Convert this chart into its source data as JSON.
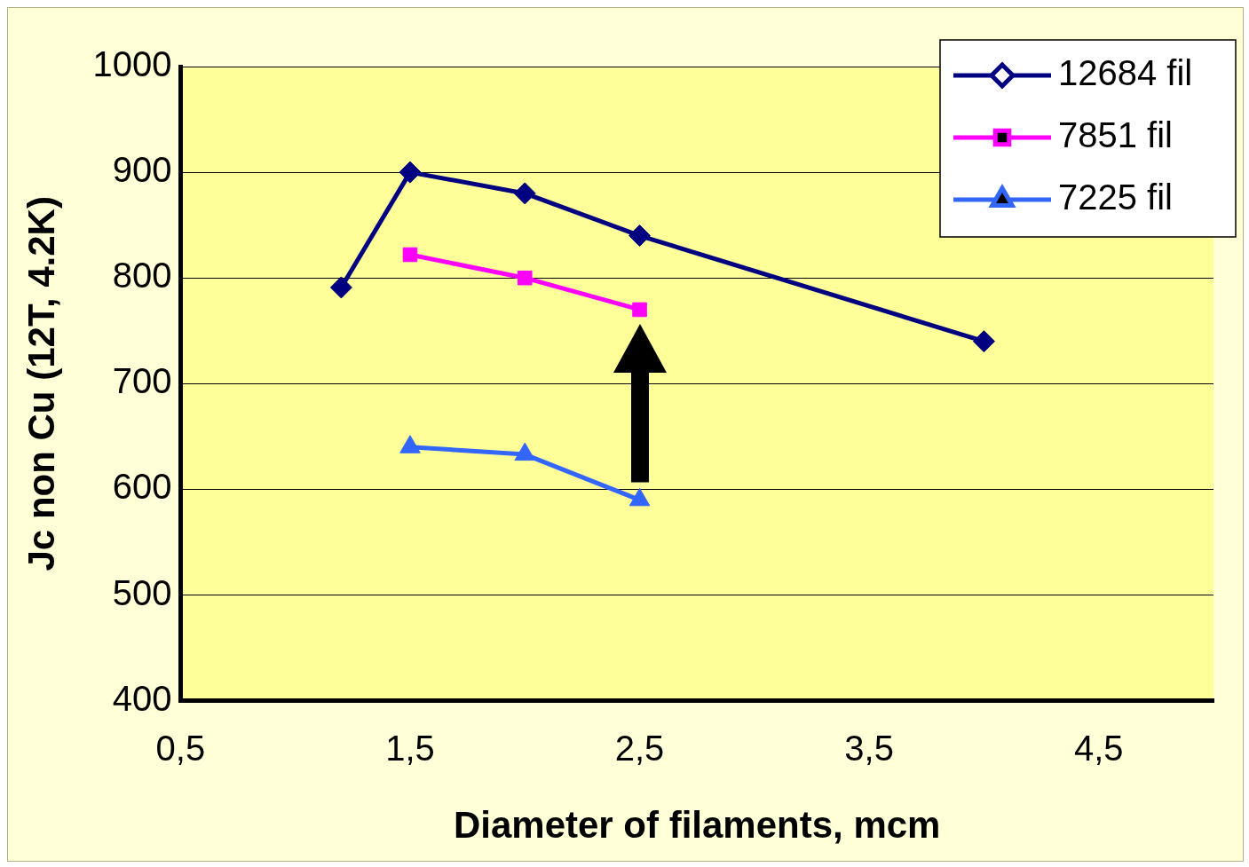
{
  "chart_data": {
    "type": "line",
    "xlabel": "Diameter of filaments, mcm",
    "ylabel": "Jc non Cu (12T, 4.2K)",
    "xlim": [
      0.5,
      5
    ],
    "xticks": [
      {
        "value": 0.5,
        "label": "0,5"
      },
      {
        "value": 1.5,
        "label": "1,5"
      },
      {
        "value": 2.5,
        "label": "2,5"
      },
      {
        "value": 3.5,
        "label": "3,5"
      },
      {
        "value": 4.5,
        "label": "4,5"
      }
    ],
    "ylim": [
      400,
      1000
    ],
    "yticks": [
      400,
      500,
      600,
      700,
      800,
      900,
      1000
    ],
    "grid": "y",
    "legend": "top right",
    "line_style": "solid",
    "series": [
      {
        "name": "12684 fil",
        "color": "#000080",
        "marker": "diamond",
        "x": [
          1.2,
          1.5,
          2.0,
          2.5,
          4.0
        ],
        "values": [
          791,
          900,
          880,
          840,
          740
        ]
      },
      {
        "name": "7851 fil",
        "color": "#ff00ff",
        "marker": "square",
        "x": [
          1.5,
          2.0,
          2.5
        ],
        "values": [
          822,
          800,
          770
        ]
      },
      {
        "name": "7225 fil",
        "color": "#3366ff",
        "marker": "triangle",
        "x": [
          1.5,
          2.0,
          2.5
        ],
        "values": [
          640,
          633,
          590
        ]
      }
    ]
  }
}
